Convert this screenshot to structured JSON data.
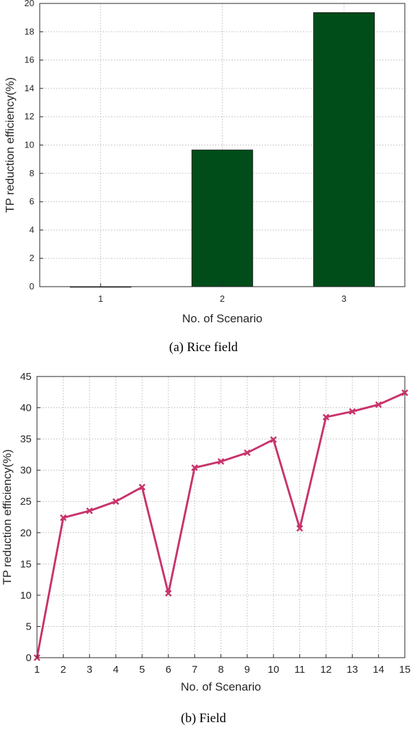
{
  "chart_data": [
    {
      "type": "bar",
      "categories": [
        "1",
        "2",
        "3"
      ],
      "values": [
        0,
        9.65,
        19.35
      ],
      "xlabel": "No. of Scenario",
      "ylabel": "TP reduction efficiency(%)",
      "ylim": [
        0,
        20
      ],
      "yticks": [
        "0",
        "2",
        "4",
        "6",
        "8",
        "10",
        "12",
        "14",
        "16",
        "18",
        "20"
      ],
      "caption": "(a)  Rice  field",
      "bar_color": "#004d1a",
      "grid": true
    },
    {
      "type": "line",
      "x": [
        1,
        2,
        3,
        4,
        5,
        6,
        7,
        8,
        9,
        10,
        11,
        12,
        13,
        14,
        15
      ],
      "y": [
        0,
        22.4,
        23.5,
        25.0,
        27.3,
        10.3,
        30.4,
        31.4,
        32.8,
        34.9,
        20.7,
        38.5,
        39.4,
        40.5,
        42.4
      ],
      "xticks": [
        "1",
        "2",
        "3",
        "4",
        "5",
        "6",
        "7",
        "8",
        "9",
        "10",
        "11",
        "12",
        "13",
        "14",
        "15"
      ],
      "yticks": [
        "0",
        "5",
        "10",
        "15",
        "20",
        "25",
        "30",
        "35",
        "40",
        "45"
      ],
      "xlabel": "No. of Scenario",
      "ylabel": "TP reduction efficiency(%)",
      "xlim": [
        1,
        15
      ],
      "ylim": [
        0,
        45
      ],
      "caption": "(b)  Field",
      "line_color": "#c8336c",
      "marker": "x",
      "grid": true
    }
  ]
}
